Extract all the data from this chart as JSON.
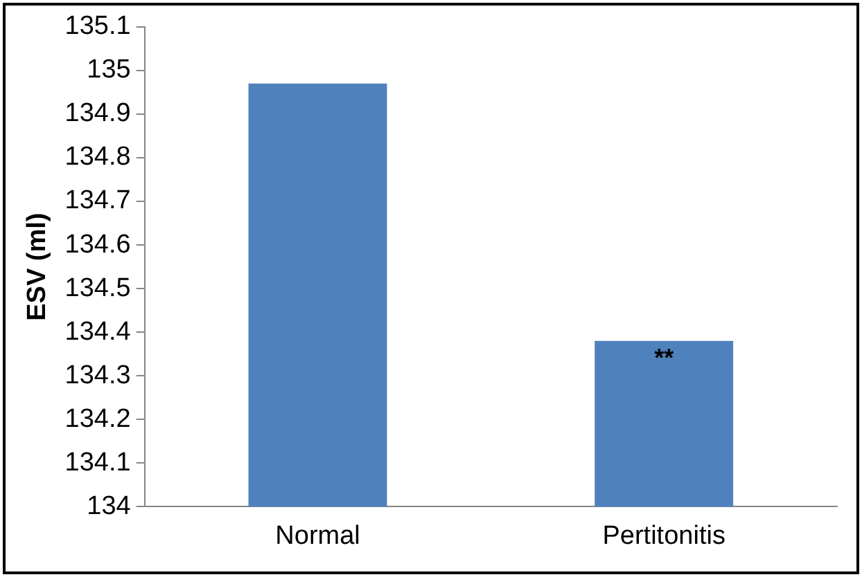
{
  "chart_data": {
    "type": "bar",
    "ylabel": "ESV (ml)",
    "categories": [
      "Normal",
      "Pertitonitis"
    ],
    "values": [
      134.97,
      134.38
    ],
    "color": "#4f81bd",
    "ylim": [
      134,
      135.1
    ],
    "yticks": [
      134,
      {
        "value": 134.1,
        "label": "134.1"
      },
      {
        "value": 134.2,
        "label": "134.2"
      },
      {
        "value": 134.3,
        "label": "134.3"
      },
      {
        "value": 134.4,
        "label": "134.4"
      },
      {
        "value": 134.5,
        "label": "134.5"
      },
      {
        "value": 134.6,
        "label": "134.6"
      },
      {
        "value": 134.7,
        "label": "134.7"
      },
      {
        "value": 134.8,
        "label": "134.8"
      },
      {
        "value": 134.9,
        "label": "134.9"
      },
      135,
      {
        "value": 135.1,
        "label": "135.1"
      }
    ],
    "grid": false,
    "legend": false,
    "annotations": [
      {
        "text": "**",
        "x": "Pertitonitis",
        "y": 134.38
      }
    ]
  }
}
